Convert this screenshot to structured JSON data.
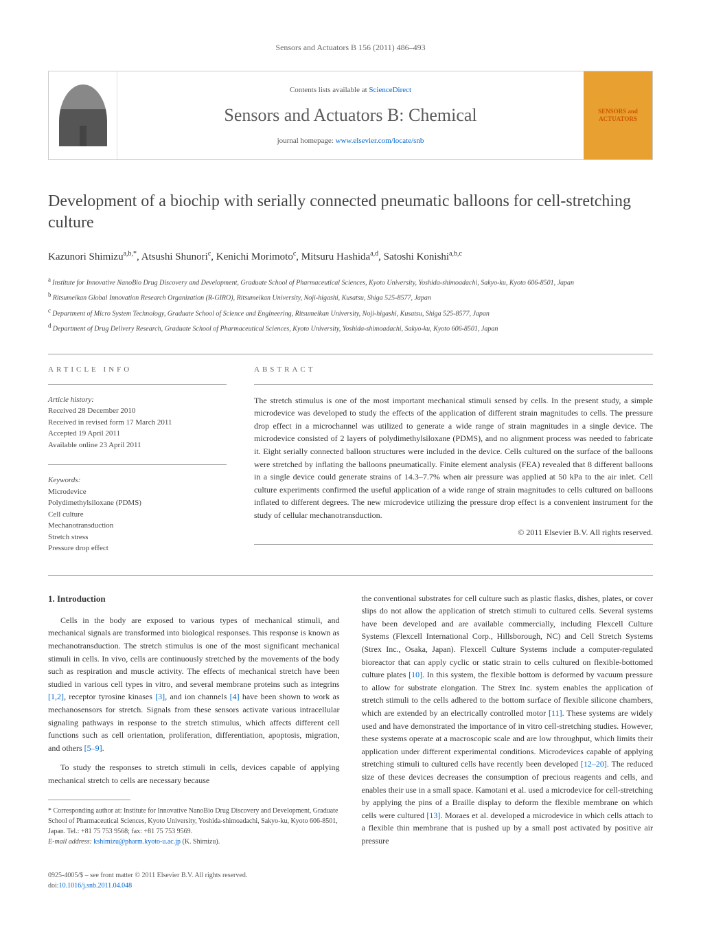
{
  "header": {
    "citation": "Sensors and Actuators B 156 (2011) 486–493"
  },
  "banner": {
    "contents_prefix": "Contents lists available at ",
    "contents_link": "ScienceDirect",
    "journal_name": "Sensors and Actuators B: Chemical",
    "homepage_prefix": "journal homepage: ",
    "homepage_link": "www.elsevier.com/locate/snb",
    "cover_line1": "SENSORS",
    "cover_and": "and",
    "cover_line2": "ACTUATORS"
  },
  "title": "Development of a biochip with serially connected pneumatic balloons for cell-stretching culture",
  "authors_html": "Kazunori Shimizu<sup>a,b,*</sup>, Atsushi Shunori<sup>c</sup>, Kenichi Morimoto<sup>c</sup>, Mitsuru Hashida<sup>a,d</sup>, Satoshi Konishi<sup>a,b,c</sup>",
  "affiliations": [
    {
      "sup": "a",
      "text": "Institute for Innovative NanoBio Drug Discovery and Development, Graduate School of Pharmaceutical Sciences, Kyoto University, Yoshida-shimoadachi, Sakyo-ku, Kyoto 606-8501, Japan"
    },
    {
      "sup": "b",
      "text": "Ritsumeikan Global Innovation Research Organization (R-GIRO), Ritsumeikan University, Noji-higashi, Kusatsu, Shiga 525-8577, Japan"
    },
    {
      "sup": "c",
      "text": "Department of Micro System Technology, Graduate School of Science and Engineering, Ritsumeikan University, Noji-higashi, Kusatsu, Shiga 525-8577, Japan"
    },
    {
      "sup": "d",
      "text": "Department of Drug Delivery Research, Graduate School of Pharmaceutical Sciences, Kyoto University, Yoshida-shimoadachi, Sakyo-ku, Kyoto 606-8501, Japan"
    }
  ],
  "article_info": {
    "label": "ARTICLE INFO",
    "history_label": "Article history:",
    "received": "Received 28 December 2010",
    "revised": "Received in revised form 17 March 2011",
    "accepted": "Accepted 19 April 2011",
    "online": "Available online 23 April 2011",
    "keywords_label": "Keywords:",
    "keywords": [
      "Microdevice",
      "Polydimethylsiloxane (PDMS)",
      "Cell culture",
      "Mechanotransduction",
      "Stretch stress",
      "Pressure drop effect"
    ]
  },
  "abstract": {
    "label": "ABSTRACT",
    "text": "The stretch stimulus is one of the most important mechanical stimuli sensed by cells. In the present study, a simple microdevice was developed to study the effects of the application of different strain magnitudes to cells. The pressure drop effect in a microchannel was utilized to generate a wide range of strain magnitudes in a single device. The microdevice consisted of 2 layers of polydimethylsiloxane (PDMS), and no alignment process was needed to fabricate it. Eight serially connected balloon structures were included in the device. Cells cultured on the surface of the balloons were stretched by inflating the balloons pneumatically. Finite element analysis (FEA) revealed that 8 different balloons in a single device could generate strains of 14.3–7.7% when air pressure was applied at 50 kPa to the air inlet. Cell culture experiments confirmed the useful application of a wide range of strain magnitudes to cells cultured on balloons inflated to different degrees. The new microdevice utilizing the pressure drop effect is a convenient instrument for the study of cellular mechanotransduction.",
    "copyright": "© 2011 Elsevier B.V. All rights reserved."
  },
  "body": {
    "section1_heading": "1. Introduction",
    "p1": "Cells in the body are exposed to various types of mechanical stimuli, and mechanical signals are transformed into biological responses. This response is known as mechanotransduction. The stretch stimulus is one of the most significant mechanical stimuli in cells. In vivo, cells are continuously stretched by the movements of the body such as respiration and muscle activity. The effects of mechanical stretch have been studied in various cell types in vitro, and several membrane proteins such as integrins [1,2], receptor tyrosine kinases [3], and ion channels [4] have been shown to work as mechanosensors for stretch. Signals from these sensors activate various intracellular signaling pathways in response to the stretch stimulus, which affects different cell functions such as cell orientation, proliferation, differentiation, apoptosis, migration, and others [5–9].",
    "p2": "To study the responses to stretch stimuli in cells, devices capable of applying mechanical stretch to cells are necessary because",
    "p3": "the conventional substrates for cell culture such as plastic flasks, dishes, plates, or cover slips do not allow the application of stretch stimuli to cultured cells. Several systems have been developed and are available commercially, including Flexcell Culture Systems (Flexcell International Corp., Hillsborough, NC) and Cell Stretch Systems (Strex Inc., Osaka, Japan). Flexcell Culture Systems include a computer-regulated bioreactor that can apply cyclic or static strain to cells cultured on flexible-bottomed culture plates [10]. In this system, the flexible bottom is deformed by vacuum pressure to allow for substrate elongation. The Strex Inc. system enables the application of stretch stimuli to the cells adhered to the bottom surface of flexible silicone chambers, which are extended by an electrically controlled motor [11]. These systems are widely used and have demonstrated the importance of in vitro cell-stretching studies. However, these systems operate at a macroscopic scale and are low throughput, which limits their application under different experimental conditions. Microdevices capable of applying stretching stimuli to cultured cells have recently been developed [12–20]. The reduced size of these devices decreases the consumption of precious reagents and cells, and enables their use in a small space. Kamotani et al. used a microdevice for cell-stretching by applying the pins of a Braille display to deform the flexible membrane on which cells were cultured [13]. Moraes et al. developed a microdevice in which cells attach to a flexible thin membrane that is pushed up by a small post activated by positive air pressure"
  },
  "footnote": {
    "corr": "* Corresponding author at: Institute for Innovative NanoBio Drug Discovery and Development, Graduate School of Pharmaceutical Sciences, Kyoto University, Yoshida-shimoadachi, Sakyo-ku, Kyoto 606-8501, Japan. Tel.: +81 75 753 9568; fax: +81 75 753 9569.",
    "email_label": "E-mail address: ",
    "email": "kshimizu@pharm.kyoto-u.ac.jp",
    "email_suffix": " (K. Shimizu)."
  },
  "footer": {
    "issn": "0925-4005/$ – see front matter © 2011 Elsevier B.V. All rights reserved.",
    "doi_prefix": "doi:",
    "doi": "10.1016/j.snb.2011.04.048"
  },
  "colors": {
    "link": "#0066cc",
    "text": "#333333",
    "muted": "#666666",
    "border": "#999999",
    "cover_bg": "#e8a030",
    "cover_text": "#cc5500"
  }
}
